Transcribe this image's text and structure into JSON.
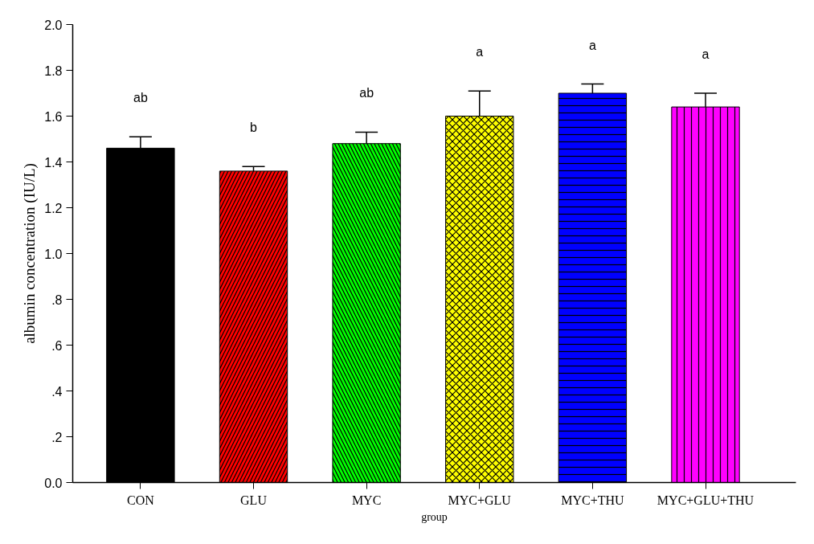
{
  "chart_data": {
    "type": "bar",
    "xlabel": "group",
    "ylabel": "albumin concentration (IU/L)",
    "categories": [
      "CON",
      "GLU",
      "MYC",
      "MYC+GLU",
      "MYC+THU",
      "MYC+GLU+THU"
    ],
    "values": [
      1.46,
      1.36,
      1.48,
      1.6,
      1.7,
      1.64
    ],
    "errors": [
      [
        1.46,
        1.51
      ],
      [
        1.36,
        1.38
      ],
      [
        1.48,
        1.53
      ],
      [
        1.6,
        1.71
      ],
      [
        1.7,
        1.74
      ],
      [
        1.64,
        1.7
      ]
    ],
    "colors": [
      "#000000",
      "#ff0000",
      "#00ff00",
      "#ffff00",
      "#0000ff",
      "#ff00ff"
    ],
    "ylim": [
      0,
      2.0
    ],
    "yticks": [
      {
        "value": 0,
        "label": "0.0"
      },
      {
        "value": 0.2,
        "label": ".2"
      },
      {
        "value": 0.4,
        "label": ".4"
      },
      {
        "value": 0.6,
        "label": ".6"
      },
      {
        "value": 0.8,
        "label": ".8"
      },
      {
        "value": 1.0,
        "label": "1.0"
      },
      {
        "value": 1.2,
        "label": "1.2"
      },
      {
        "value": 1.4,
        "label": "1.4"
      },
      {
        "value": 1.6,
        "label": "1.6"
      },
      {
        "value": 1.8,
        "label": "1.8"
      },
      {
        "value": 2.0,
        "label": "2.0"
      }
    ],
    "annotations": [
      "ab",
      "b",
      "ab",
      "a",
      "a",
      "a"
    ],
    "grid": false
  }
}
